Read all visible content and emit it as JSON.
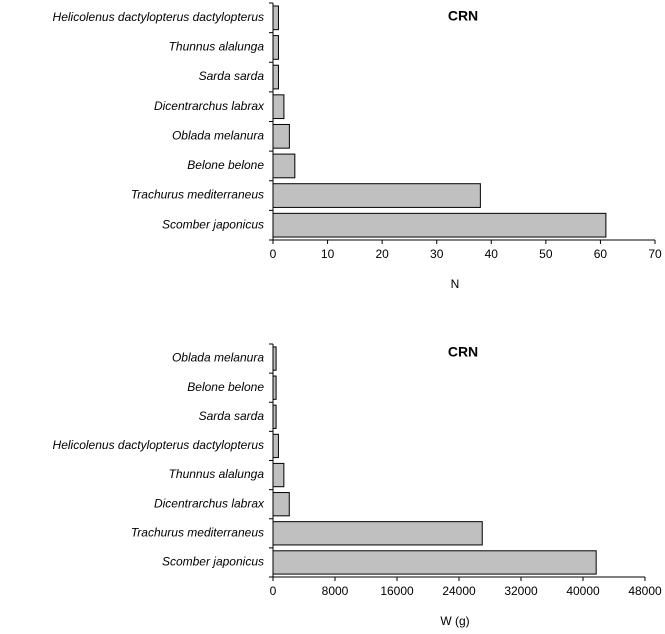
{
  "chart_data": [
    {
      "type": "bar",
      "orientation": "horizontal",
      "title": "CRN",
      "x_label": "N",
      "categories": [
        "Helicolenus dactylopterus dactylopterus",
        "Thunnus alalunga",
        "Sarda sarda",
        "Dicentrarchus labrax",
        "Oblada melanura",
        "Belone belone",
        "Trachurus mediterraneus",
        "Scomber japonicus"
      ],
      "values": [
        1,
        1,
        1,
        2,
        3,
        4,
        38,
        61
      ],
      "color": "#c0c0c0",
      "xlim": [
        0,
        70
      ],
      "xticks": [
        0,
        10,
        20,
        30,
        40,
        50,
        60,
        70
      ]
    },
    {
      "type": "bar",
      "orientation": "horizontal",
      "title": "CRN",
      "x_label": "W (g)",
      "categories": [
        "Oblada melanura",
        "Belone belone",
        "Sarda sarda",
        "Helicolenus dactylopterus dactylopterus",
        "Thunnus alalunga",
        "Dicentrarchus labrax",
        "Trachurus mediterraneus",
        "Scomber japonicus"
      ],
      "values": [
        400,
        400,
        400,
        700,
        1400,
        2100,
        27000,
        41700
      ],
      "color": "#c0c0c0",
      "xlim": [
        0,
        48000
      ],
      "xticks": [
        0,
        8000,
        16000,
        24000,
        32000,
        40000,
        48000
      ]
    }
  ]
}
